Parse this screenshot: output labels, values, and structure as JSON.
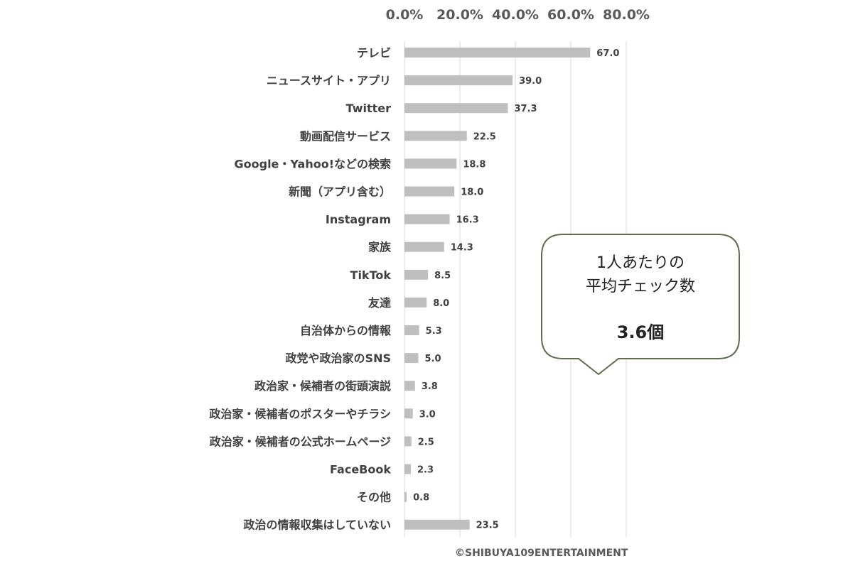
{
  "chart_data": {
    "type": "bar",
    "orientation": "horizontal",
    "categories": [
      "テレビ",
      "ニュースサイト・アプリ",
      "Twitter",
      "動画配信サービス",
      "Google・Yahoo!などの検索",
      "新聞（アプリ含む）",
      "Instagram",
      "家族",
      "TikTok",
      "友達",
      "自治体からの情報",
      "政党や政治家のSNS",
      "政治家・候補者の街頭演説",
      "政治家・候補者のポスターやチラシ",
      "政治家・候補者の公式ホームページ",
      "FaceBook",
      "その他",
      "政治の情報収集はしていない"
    ],
    "values": [
      67.0,
      39.0,
      37.3,
      22.5,
      18.8,
      18.0,
      16.3,
      14.3,
      8.5,
      8.0,
      5.3,
      5.0,
      3.8,
      3.0,
      2.5,
      2.3,
      0.8,
      23.5
    ],
    "value_labels": [
      "67.0",
      "39.0",
      "37.3",
      "22.5",
      "18.8",
      "18.0",
      "16.3",
      "14.3",
      "8.5",
      "8.0",
      "5.3",
      "5.0",
      "3.8",
      "3.0",
      "2.5",
      "2.3",
      "0.8",
      "23.5"
    ],
    "x_ticks": [
      "0.0%",
      "20.0%",
      "40.0%",
      "60.0%",
      "80.0%"
    ],
    "xlim": [
      0,
      80
    ],
    "axis_position": "top",
    "grid": true,
    "bar_color": "#bfbfbf"
  },
  "callout": {
    "line1": "1人あたりの",
    "line2": "平均チェック数",
    "value": "3.6個",
    "border_color": "#5e6e4c"
  },
  "copyright": "©SHIBUYA109ENTERTAINMENT"
}
